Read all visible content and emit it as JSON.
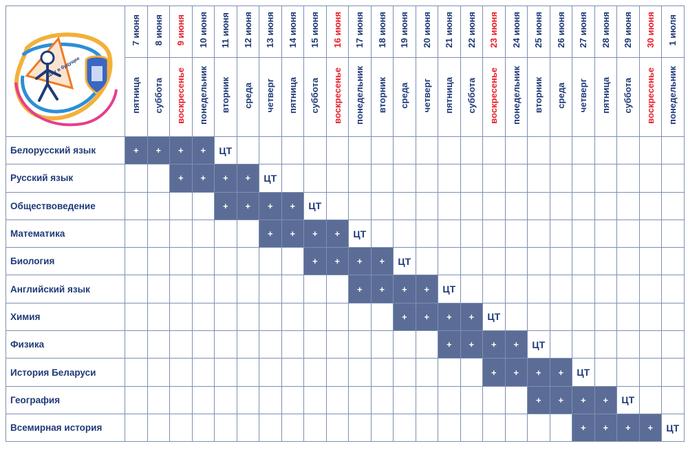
{
  "days": [
    {
      "date": "7 июня",
      "weekday": "пятница",
      "sunday": false
    },
    {
      "date": "8 июня",
      "weekday": "суббота",
      "sunday": false
    },
    {
      "date": "9 июня",
      "weekday": "воскресенье",
      "sunday": true
    },
    {
      "date": "10 июня",
      "weekday": "понедельник",
      "sunday": false
    },
    {
      "date": "11 июня",
      "weekday": "вторник",
      "sunday": false
    },
    {
      "date": "12 июня",
      "weekday": "среда",
      "sunday": false
    },
    {
      "date": "13 июня",
      "weekday": "четверг",
      "sunday": false
    },
    {
      "date": "14 июня",
      "weekday": "пятница",
      "sunday": false
    },
    {
      "date": "15 июня",
      "weekday": "суббота",
      "sunday": false
    },
    {
      "date": "16 июня",
      "weekday": "воскресенье",
      "sunday": true
    },
    {
      "date": "17 июня",
      "weekday": "понедельник",
      "sunday": false
    },
    {
      "date": "18 июня",
      "weekday": "вторник",
      "sunday": false
    },
    {
      "date": "19 июня",
      "weekday": "среда",
      "sunday": false
    },
    {
      "date": "20 июня",
      "weekday": "четверг",
      "sunday": false
    },
    {
      "date": "21 июня",
      "weekday": "пятница",
      "sunday": false
    },
    {
      "date": "22 июня",
      "weekday": "суббота",
      "sunday": false
    },
    {
      "date": "23 июня",
      "weekday": "воскресенье",
      "sunday": true
    },
    {
      "date": "24 июня",
      "weekday": "понедельник",
      "sunday": false
    },
    {
      "date": "25 июня",
      "weekday": "вторник",
      "sunday": false
    },
    {
      "date": "26 июня",
      "weekday": "среда",
      "sunday": false
    },
    {
      "date": "27 июня",
      "weekday": "четверг",
      "sunday": false
    },
    {
      "date": "28 июня",
      "weekday": "пятница",
      "sunday": false
    },
    {
      "date": "29 июня",
      "weekday": "суббота",
      "sunday": false
    },
    {
      "date": "30 июня",
      "weekday": "воскресенье",
      "sunday": true
    },
    {
      "date": "1 июля",
      "weekday": "понедельник",
      "sunday": false
    }
  ],
  "marks": {
    "plus": "+",
    "test": "ЦТ"
  },
  "colors": {
    "plus_cell": "#5b6d96",
    "text": "#1f3a78",
    "sunday": "#e8202a",
    "grid": "#7d8fb3"
  },
  "subjects": [
    {
      "name": "Белорусский язык",
      "plus": [
        0,
        1,
        2,
        3
      ],
      "test": 4
    },
    {
      "name": "Русский язык",
      "plus": [
        2,
        3,
        4,
        5
      ],
      "test": 6
    },
    {
      "name": "Обществоведение",
      "plus": [
        4,
        5,
        6,
        7
      ],
      "test": 8
    },
    {
      "name": "Математика",
      "plus": [
        6,
        7,
        8,
        9
      ],
      "test": 10
    },
    {
      "name": "Биология",
      "plus": [
        8,
        9,
        10,
        11
      ],
      "test": 12
    },
    {
      "name": "Английский язык",
      "plus": [
        10,
        11,
        12,
        13
      ],
      "test": 14
    },
    {
      "name": "Химия",
      "plus": [
        12,
        13,
        14,
        15
      ],
      "test": 16
    },
    {
      "name": "Физика",
      "plus": [
        14,
        15,
        16,
        17
      ],
      "test": 18
    },
    {
      "name": "История Беларуси",
      "plus": [
        16,
        17,
        18,
        19
      ],
      "test": 20
    },
    {
      "name": "География",
      "plus": [
        18,
        19,
        20,
        21
      ],
      "test": 22
    },
    {
      "name": "Всемирная история",
      "plus": [
        20,
        21,
        22,
        23
      ],
      "test": 24
    }
  ],
  "logo": {
    "text": "Шаг в будущее"
  }
}
